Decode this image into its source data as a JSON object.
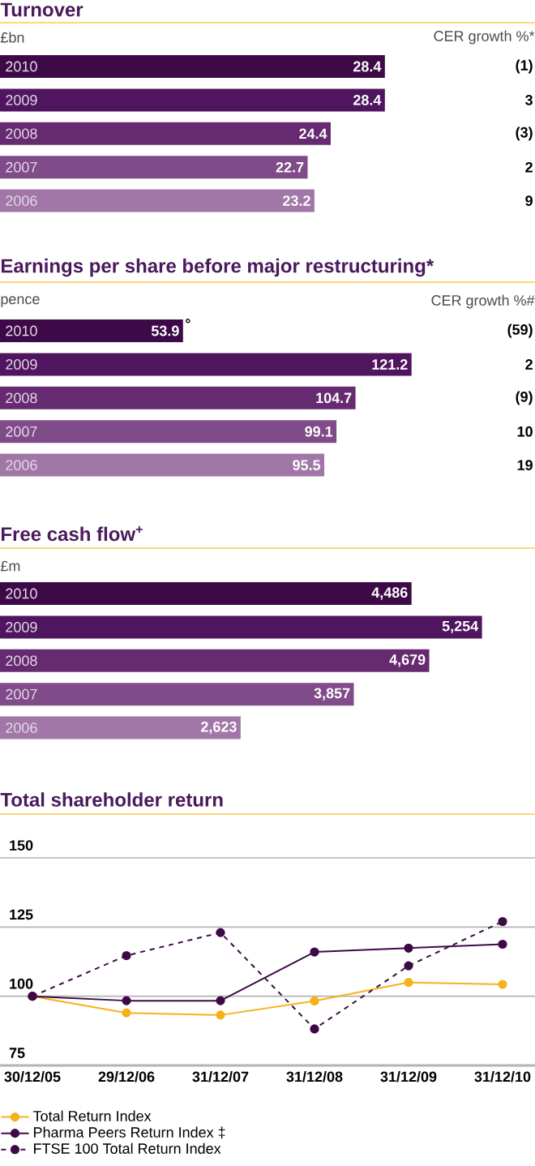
{
  "chart_data": [
    {
      "type": "bar",
      "orientation": "horizontal",
      "title": "Turnover",
      "xlabel": "£bn",
      "categories": [
        "2010",
        "2009",
        "2008",
        "2007",
        "2006"
      ],
      "values": [
        28.4,
        28.4,
        24.4,
        22.7,
        23.2
      ],
      "value_labels": [
        "28.4",
        "28.4",
        "24.4",
        "22.7",
        "23.2"
      ],
      "colors": [
        "#3d0a47",
        "#4f165f",
        "#662a70",
        "#7f4b89",
        "#a077a6"
      ],
      "annotations": [
        "CER growth %*",
        "(1)",
        "3",
        "(3)",
        "2",
        "9"
      ]
    },
    {
      "type": "bar",
      "orientation": "horizontal",
      "title": "Earnings per share before major restructuring*",
      "xlabel": "pence",
      "categories": [
        "2010",
        "2009",
        "2008",
        "2007",
        "2006"
      ],
      "values": [
        53.9,
        121.2,
        104.7,
        99.1,
        95.5
      ],
      "value_labels": [
        "53.9",
        "121.2",
        "104.7",
        "99.1",
        "95.5"
      ],
      "colors": [
        "#3d0a47",
        "#4f165f",
        "#662a70",
        "#7f4b89",
        "#a077a6"
      ],
      "annotations": [
        "CER growth %#",
        "(59)",
        "2",
        "(9)",
        "10",
        "19",
        {
          "text": "°",
          "x": 53.9,
          "y": "2010"
        }
      ]
    },
    {
      "type": "bar",
      "orientation": "horizontal",
      "title": "Free cash flow$^{+}$",
      "xlabel": "£m",
      "categories": [
        "2010",
        "2009",
        "2008",
        "2007",
        "2006"
      ],
      "values": [
        4486,
        5254,
        4679,
        3857,
        2623
      ],
      "value_labels": [
        "4,486",
        "5,254",
        "4,679",
        "3,857",
        "2,623"
      ],
      "colors": [
        "#3d0a47",
        "#4f165f",
        "#662a70",
        "#7f4b89",
        "#a077a6"
      ]
    },
    {
      "type": "line",
      "title": "Total shareholder return",
      "categories": [
        "30/12/05",
        "29/12/06",
        "31/12/07",
        "31/12/08",
        "31/12/09",
        "31/12/10"
      ],
      "ylim": [
        75,
        150
      ],
      "yticks": [
        75,
        100,
        125,
        150
      ],
      "grid": "y",
      "legend": "bottom",
      "marker": "circle",
      "series": [
        {
          "name": "Total Return Index",
          "color": "#f5b21b",
          "line_style": "solid",
          "values": [
            100,
            94.0,
            93.2,
            98.3,
            105,
            104.3
          ]
        },
        {
          "name": "Pharma Peers Return Index ‡",
          "color": "#3d0a47",
          "line_style": "solid",
          "values": [
            100,
            98.4,
            98.4,
            116,
            117.4,
            118.8
          ]
        },
        {
          "name": "FTSE 100 Total Return Index",
          "color": "#3d0a47",
          "line_style": "dashed",
          "values": [
            100,
            114.7,
            123,
            88.2,
            111,
            127
          ]
        }
      ]
    }
  ]
}
